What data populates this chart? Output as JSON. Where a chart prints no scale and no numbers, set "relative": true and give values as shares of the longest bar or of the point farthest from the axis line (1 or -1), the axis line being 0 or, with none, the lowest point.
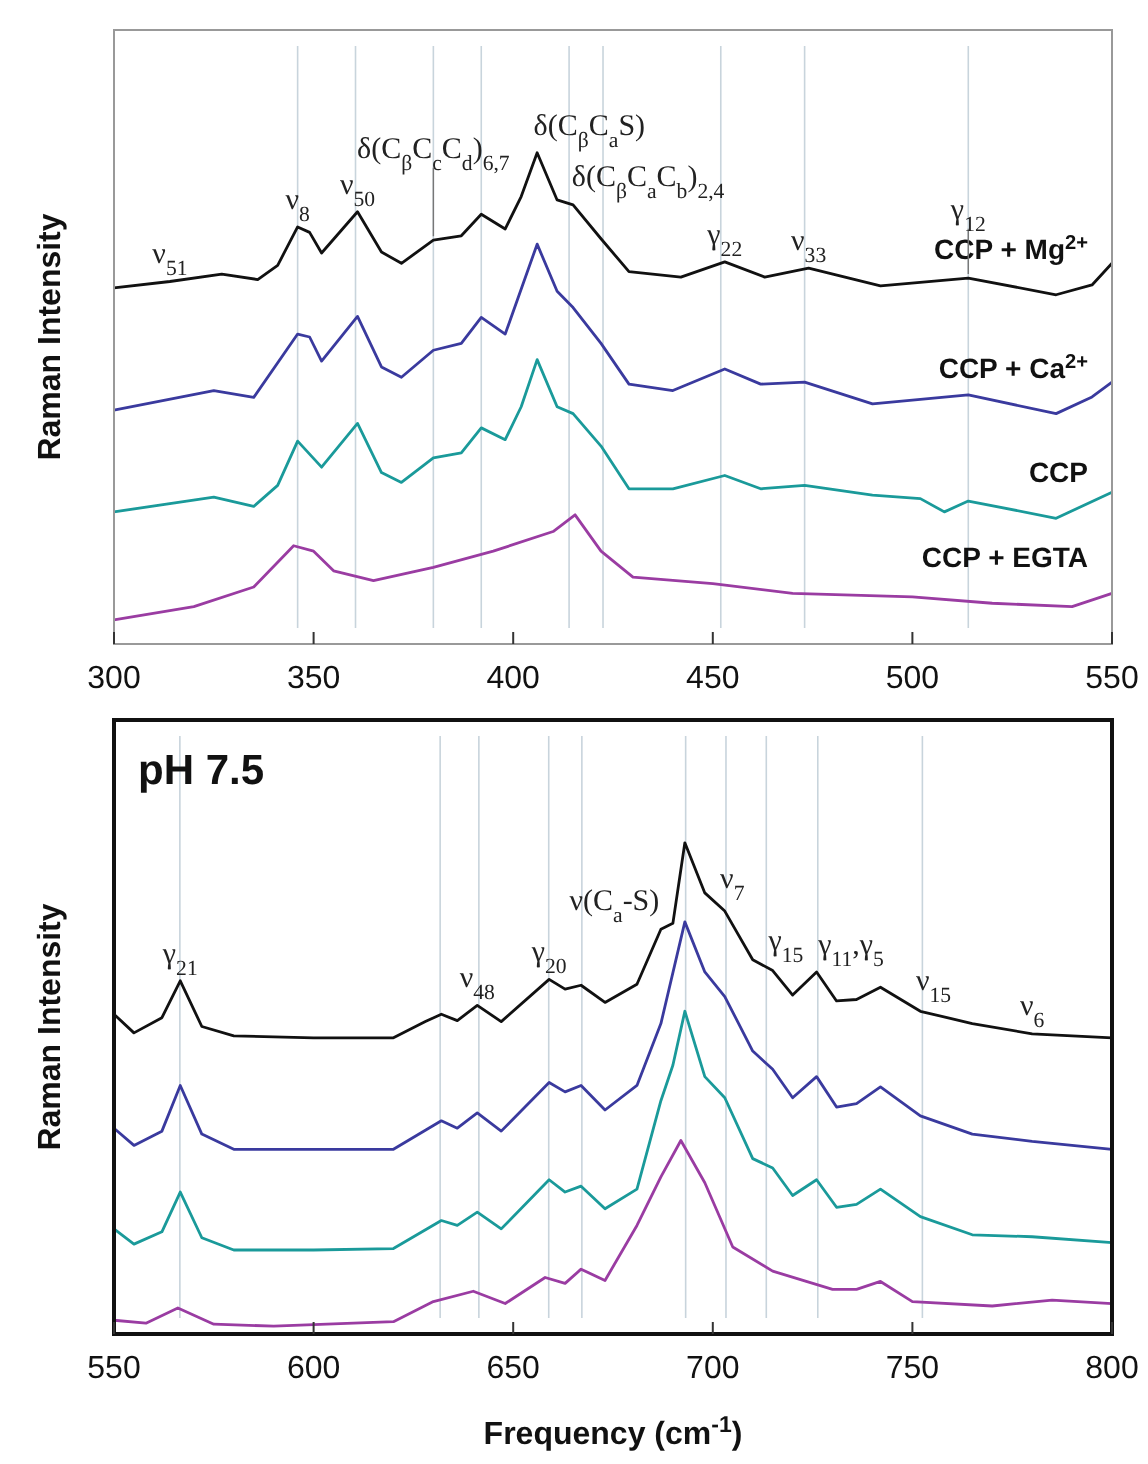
{
  "chart_data": [
    {
      "type": "line",
      "relative": true,
      "ylabel": "Raman Intensity",
      "xlim": [
        300,
        550
      ],
      "xticks": [
        300,
        350,
        400,
        450,
        500,
        550
      ],
      "tick_labels": "x",
      "series": [
        {
          "name": "CCP + Mg$^{2+}$",
          "color": "#111111",
          "x": [
            300,
            314,
            327,
            336,
            341,
            346,
            349,
            352,
            361,
            367,
            372,
            380,
            387,
            392,
            398,
            402,
            406,
            411,
            415,
            422,
            429,
            442,
            453,
            463,
            474,
            492,
            514,
            536,
            545,
            550
          ],
          "values": [
            0.725,
            0.738,
            0.753,
            0.742,
            0.771,
            0.849,
            0.838,
            0.796,
            0.88,
            0.798,
            0.775,
            0.822,
            0.831,
            0.875,
            0.845,
            0.911,
            1.0,
            0.904,
            0.894,
            0.825,
            0.758,
            0.747,
            0.778,
            0.747,
            0.765,
            0.729,
            0.745,
            0.711,
            0.731,
            0.775
          ]
        },
        {
          "name": "CCP + Ca$^{2+}$",
          "color": "#3a3a9e",
          "x": [
            300,
            325,
            335,
            346,
            349,
            352,
            361,
            367,
            372,
            380,
            387,
            392,
            398,
            406,
            411,
            415,
            422,
            429,
            440,
            453,
            462,
            473,
            490,
            514,
            536,
            545,
            550
          ],
          "values": [
            0.476,
            0.516,
            0.502,
            0.631,
            0.625,
            0.576,
            0.667,
            0.564,
            0.543,
            0.598,
            0.612,
            0.665,
            0.631,
            0.814,
            0.718,
            0.685,
            0.612,
            0.529,
            0.516,
            0.56,
            0.529,
            0.533,
            0.489,
            0.507,
            0.469,
            0.503,
            0.533
          ]
        },
        {
          "name": "CCP",
          "color": "#1a9a9a",
          "x": [
            300,
            325,
            335,
            341,
            346,
            352,
            361,
            367,
            372,
            380,
            387,
            392,
            398,
            402,
            406,
            411,
            415,
            422,
            429,
            440,
            453,
            462,
            473,
            490,
            502,
            508,
            514,
            536,
            550
          ],
          "values": [
            0.269,
            0.299,
            0.28,
            0.323,
            0.413,
            0.36,
            0.449,
            0.349,
            0.329,
            0.379,
            0.389,
            0.44,
            0.416,
            0.483,
            0.579,
            0.483,
            0.469,
            0.403,
            0.316,
            0.316,
            0.343,
            0.316,
            0.323,
            0.303,
            0.296,
            0.269,
            0.291,
            0.256,
            0.309
          ]
        },
        {
          "name": "CCP + EGTA",
          "color": "#9a3ca2",
          "x": [
            300,
            320,
            335,
            345,
            350,
            355,
            365,
            380,
            395,
            410,
            415.5,
            422,
            430,
            450,
            470,
            500,
            520,
            540,
            550
          ],
          "values": [
            0.049,
            0.076,
            0.116,
            0.2,
            0.189,
            0.149,
            0.129,
            0.156,
            0.189,
            0.229,
            0.263,
            0.189,
            0.136,
            0.123,
            0.103,
            0.096,
            0.083,
            0.076,
            0.103
          ]
        }
      ],
      "ref_lines": [
        {
          "axis": "x",
          "value": 346,
          "color": "#c8d4dc"
        },
        {
          "axis": "x",
          "value": 360.5,
          "color": "#c8d4dc"
        },
        {
          "axis": "x",
          "value": 380,
          "color": "#c8d4dc"
        },
        {
          "axis": "x",
          "value": 392,
          "color": "#c8d4dc"
        },
        {
          "axis": "x",
          "value": 414,
          "color": "#c8d4dc"
        },
        {
          "axis": "x",
          "value": 422.5,
          "color": "#c8d4dc"
        },
        {
          "axis": "x",
          "value": 452,
          "color": "#c8d4dc"
        },
        {
          "axis": "x",
          "value": 473,
          "color": "#c8d4dc"
        },
        {
          "axis": "x",
          "value": 514,
          "color": "#c8d4dc"
        }
      ],
      "annotations": [
        {
          "text": "ν$_{51}$",
          "x": 314,
          "y": 0.738
        },
        {
          "text": "ν$_{8}$",
          "x": 346,
          "y": 0.849
        },
        {
          "text": "ν$_{50}$",
          "x": 361,
          "y": 0.88
        },
        {
          "text": "δ(C$_{β}$C$_{c}$C$_{d}$)$_{6,7}$",
          "x": 380,
          "y": 0.822
        },
        {
          "text": "δ(C$_{β}$C$_{a}$S)",
          "x": 406,
          "y": 1.0
        },
        {
          "text": "δ(C$_{β}$C$_{a}$C$_{b}$)$_{2,4}$",
          "x": 415,
          "y": 0.894
        },
        {
          "text": "γ$_{22}$",
          "x": 453,
          "y": 0.778
        },
        {
          "text": "ν$_{33}$",
          "x": 474,
          "y": 0.765
        },
        {
          "text": "γ$_{12}$",
          "x": 514,
          "y": 0.745
        }
      ]
    },
    {
      "type": "line",
      "relative": true,
      "ylabel": "Raman Intensity",
      "xlabel": "Frequency  (cm$^{-1}$)",
      "xlim": [
        550,
        800
      ],
      "xticks": [
        550,
        600,
        650,
        700,
        750,
        800
      ],
      "tick_labels": "x",
      "series": [
        {
          "color": "#111111",
          "x": [
            550,
            555,
            562,
            566.6,
            572,
            580,
            600,
            620,
            628,
            632,
            636,
            641,
            647,
            659,
            663,
            667,
            673,
            681,
            687,
            690,
            693,
            698,
            703,
            710,
            715,
            720,
            726,
            731,
            736,
            742,
            752,
            765,
            780,
            800
          ],
          "values": [
            0.651,
            0.613,
            0.644,
            0.719,
            0.626,
            0.607,
            0.603,
            0.603,
            0.636,
            0.651,
            0.638,
            0.669,
            0.636,
            0.722,
            0.702,
            0.71,
            0.675,
            0.712,
            0.824,
            0.836,
            1.0,
            0.898,
            0.861,
            0.762,
            0.74,
            0.69,
            0.737,
            0.678,
            0.681,
            0.706,
            0.657,
            0.632,
            0.611,
            0.603
          ]
        },
        {
          "color": "#3a3a9e",
          "x": [
            550,
            555,
            562,
            566.6,
            572,
            580,
            600,
            620,
            632,
            636,
            641,
            647,
            659,
            663,
            667,
            673,
            681,
            687,
            693,
            698,
            703,
            710,
            715,
            720,
            726,
            731,
            736,
            742,
            752,
            765,
            780,
            800
          ],
          "values": [
            0.419,
            0.384,
            0.413,
            0.506,
            0.407,
            0.376,
            0.376,
            0.376,
            0.434,
            0.419,
            0.45,
            0.413,
            0.512,
            0.493,
            0.506,
            0.456,
            0.506,
            0.632,
            0.839,
            0.737,
            0.687,
            0.576,
            0.539,
            0.481,
            0.524,
            0.462,
            0.469,
            0.503,
            0.444,
            0.407,
            0.392,
            0.376
          ]
        },
        {
          "color": "#1a9a9a",
          "x": [
            550,
            555,
            562,
            566.6,
            572,
            580,
            600,
            620,
            632,
            636,
            641,
            647,
            659,
            663,
            667,
            673,
            681,
            687,
            690,
            693,
            698,
            703,
            710,
            715,
            720,
            726,
            731,
            736,
            742,
            752,
            765,
            780,
            800
          ],
          "values": [
            0.214,
            0.183,
            0.208,
            0.289,
            0.196,
            0.171,
            0.171,
            0.174,
            0.231,
            0.221,
            0.248,
            0.214,
            0.314,
            0.289,
            0.301,
            0.255,
            0.295,
            0.475,
            0.547,
            0.657,
            0.524,
            0.481,
            0.357,
            0.338,
            0.282,
            0.314,
            0.258,
            0.264,
            0.295,
            0.239,
            0.202,
            0.198,
            0.186
          ]
        },
        {
          "color": "#9a3ca2",
          "x": [
            550,
            558,
            566,
            575,
            590,
            620,
            630,
            640,
            648,
            658,
            663,
            667,
            673,
            681,
            687,
            692,
            698,
            705,
            715,
            730,
            736,
            742,
            750,
            770,
            785,
            800
          ],
          "values": [
            0.028,
            0.022,
            0.053,
            0.02,
            0.016,
            0.025,
            0.066,
            0.087,
            0.062,
            0.115,
            0.103,
            0.132,
            0.109,
            0.221,
            0.32,
            0.394,
            0.308,
            0.177,
            0.128,
            0.091,
            0.091,
            0.107,
            0.066,
            0.057,
            0.069,
            0.062
          ]
        }
      ],
      "ref_lines": [
        {
          "axis": "x",
          "value": 566.5,
          "color": "#c8d4dc"
        },
        {
          "axis": "x",
          "value": 631.7,
          "color": "#c8d4dc"
        },
        {
          "axis": "x",
          "value": 641.4,
          "color": "#c8d4dc"
        },
        {
          "axis": "x",
          "value": 658.9,
          "color": "#c8d4dc"
        },
        {
          "axis": "x",
          "value": 667.2,
          "color": "#c8d4dc"
        },
        {
          "axis": "x",
          "value": 693.2,
          "color": "#c8d4dc"
        },
        {
          "axis": "x",
          "value": 703.3,
          "color": "#c8d4dc"
        },
        {
          "axis": "x",
          "value": 713.4,
          "color": "#c8d4dc"
        },
        {
          "axis": "x",
          "value": 726.3,
          "color": "#c8d4dc"
        },
        {
          "axis": "x",
          "value": 752.5,
          "color": "#c8d4dc"
        }
      ],
      "annotations": [
        "pH 7.5",
        {
          "text": "γ$_{21}$",
          "x": 566.6,
          "y": 0.719
        },
        {
          "text": "ν$_{48}$",
          "x": 641,
          "y": 0.669
        },
        {
          "text": "γ$_{20}$",
          "x": 659,
          "y": 0.722
        },
        {
          "text": "ν(C$_{a}$-S)",
          "x": 687,
          "y": 0.824
        },
        {
          "text": "ν$_{7}$",
          "x": 703,
          "y": 0.861
        },
        {
          "text": "γ$_{15}$",
          "x": 715,
          "y": 0.74
        },
        {
          "text": "γ$_{11}$,γ$_{5}$",
          "x": 726,
          "y": 0.737
        },
        {
          "text": "ν$_{15}$",
          "x": 752,
          "y": 0.657
        },
        {
          "text": "ν$_{6}$",
          "x": 780,
          "y": 0.611
        }
      ]
    }
  ]
}
